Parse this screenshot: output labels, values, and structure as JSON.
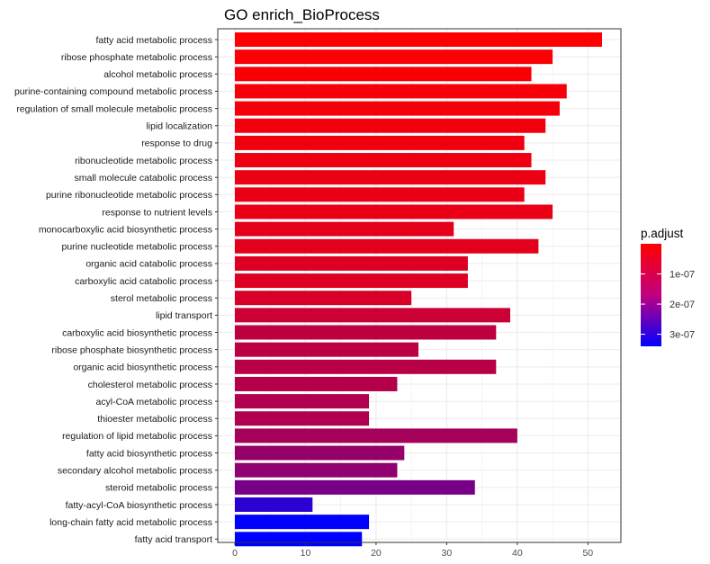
{
  "chart_data": {
    "type": "bar",
    "orientation": "horizontal",
    "title": "GO enrich_BioProcess",
    "xlabel": "",
    "ylabel": "",
    "xlim": [
      0,
      55
    ],
    "xticks": [
      0,
      10,
      20,
      30,
      40,
      50
    ],
    "grid": true,
    "legend_placement": "right",
    "categories": [
      "fatty acid metabolic process",
      "ribose phosphate metabolic process",
      "alcohol metabolic process",
      "purine-containing compound metabolic process",
      "regulation of small molecule metabolic process",
      "lipid localization",
      "response to drug",
      "ribonucleotide metabolic process",
      "small molecule catabolic process",
      "purine ribonucleotide metabolic process",
      "response to nutrient levels",
      "monocarboxylic acid biosynthetic process",
      "purine nucleotide metabolic process",
      "organic acid catabolic process",
      "carboxylic acid catabolic process",
      "sterol metabolic process",
      "lipid transport",
      "carboxylic acid biosynthetic process",
      "ribose phosphate biosynthetic process",
      "organic acid biosynthetic process",
      "cholesterol metabolic process",
      "acyl-CoA metabolic process",
      "thioester metabolic process",
      "regulation of lipid metabolic process",
      "fatty acid biosynthetic process",
      "secondary alcohol metabolic process",
      "steroid metabolic process",
      "fatty-acyl-CoA biosynthetic process",
      "long-chain fatty acid metabolic process",
      "fatty acid transport"
    ],
    "values": [
      52,
      45,
      42,
      47,
      46,
      44,
      41,
      42,
      44,
      41,
      45,
      31,
      43,
      33,
      33,
      25,
      39,
      37,
      26,
      37,
      23,
      19,
      19,
      40,
      24,
      23,
      34,
      11,
      19,
      18
    ],
    "p_adjust": [
      1e-09,
      5e-09,
      8e-09,
      1.2e-08,
      1.5e-08,
      1.8e-08,
      2e-08,
      2.2e-08,
      2.5e-08,
      2.8e-08,
      3e-08,
      3.5e-08,
      3.7e-08,
      4.5e-08,
      4.5e-08,
      5.5e-08,
      7e-08,
      8.5e-08,
      9e-08,
      9.5e-08,
      1e-07,
      1.05e-07,
      1.05e-07,
      1.2e-07,
      1.4e-07,
      1.5e-07,
      1.8e-07,
      2.8e-07,
      3.4e-07,
      3.4e-07
    ],
    "color_scale": {
      "title": "p.adjust",
      "low_color": "#ff0000",
      "high_color": "#0000ff",
      "range": [
        0,
        3.4e-07
      ],
      "ticks": [
        1e-07,
        2e-07,
        3e-07
      ],
      "tick_labels": [
        "1e-07",
        "2e-07",
        "3e-07"
      ]
    },
    "colors": {
      "panel_background": "#ffffff",
      "grid": "#ebebeb",
      "axis": "#333333"
    }
  }
}
